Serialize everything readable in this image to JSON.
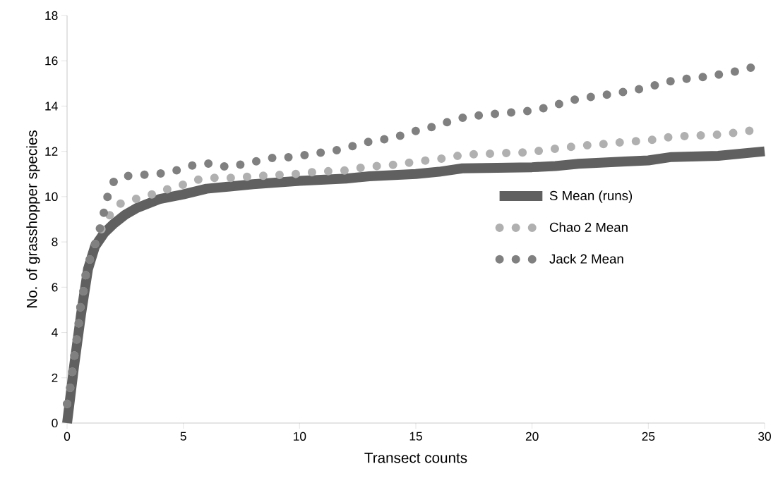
{
  "chart_data": {
    "type": "line",
    "xlabel": "Transect counts",
    "ylabel": "No. of grasshopper species",
    "xlim": [
      0,
      30
    ],
    "ylim": [
      0,
      18
    ],
    "xticks": [
      0,
      5,
      10,
      15,
      20,
      25,
      30
    ],
    "yticks": [
      0,
      2,
      4,
      6,
      8,
      10,
      12,
      14,
      16,
      18
    ],
    "grid": false,
    "legend": "right",
    "marker": "none",
    "series": [
      {
        "name": "S Mean (runs)",
        "color": "#606060",
        "line_style": "solid",
        "x": [
          0,
          0.3,
          0.6,
          0.9,
          1.2,
          1.6,
          2,
          2.5,
          3,
          4,
          5,
          6,
          7,
          8,
          10,
          12,
          13,
          15,
          16,
          17,
          20,
          21,
          22,
          24,
          25,
          26,
          28,
          30
        ],
        "values": [
          0,
          2.5,
          4.8,
          6.8,
          7.8,
          8.4,
          8.8,
          9.2,
          9.5,
          9.9,
          10.1,
          10.35,
          10.45,
          10.55,
          10.7,
          10.8,
          10.9,
          11.0,
          11.1,
          11.25,
          11.3,
          11.35,
          11.45,
          11.55,
          11.6,
          11.75,
          11.8,
          12.0
        ]
      },
      {
        "name": "Chao 2 Mean",
        "color": "#b0b0b0",
        "line_style": "dotted",
        "x": [
          0,
          0.15,
          0.25,
          0.36,
          0.48,
          0.55,
          0.7,
          0.82,
          1.06,
          1.34,
          1.7,
          2.18,
          2.85,
          3.55,
          4.22,
          4.9,
          5.6,
          6.3,
          7.0,
          7.7,
          8.4,
          9.1,
          9.8,
          10.5,
          11.2,
          11.9,
          12.6,
          13.3,
          14.0,
          14.7,
          15.4,
          16.1,
          16.8,
          17.5,
          18.2,
          18.9,
          19.6,
          20.3,
          21.0,
          21.7,
          22.4,
          23.1,
          23.8,
          24.5,
          25.3,
          25.9,
          26.7,
          27.4,
          28.1,
          28.8,
          29.5
        ],
        "values": [
          0.85,
          1.65,
          2.5,
          3.33,
          4.15,
          5.0,
          5.8,
          6.7,
          7.5,
          8.3,
          9.0,
          9.65,
          9.87,
          10.06,
          10.3,
          10.5,
          10.75,
          10.83,
          10.83,
          10.87,
          10.92,
          10.96,
          11.0,
          11.08,
          11.12,
          11.15,
          11.27,
          11.35,
          11.4,
          11.5,
          11.59,
          11.68,
          11.8,
          11.87,
          11.9,
          11.93,
          11.95,
          12.02,
          12.12,
          12.2,
          12.27,
          12.33,
          12.4,
          12.45,
          12.52,
          12.63,
          12.68,
          12.71,
          12.74,
          12.83,
          12.93
        ]
      },
      {
        "name": "Jack 2 Mean",
        "color": "#808080",
        "line_style": "dotted",
        "x": [
          0,
          0.15,
          0.25,
          0.36,
          0.48,
          0.55,
          0.7,
          0.82,
          1.06,
          1.34,
          1.55,
          1.73,
          2.03,
          2.67,
          3.37,
          4.07,
          4.77,
          5.47,
          6.16,
          6.86,
          7.53,
          8.23,
          8.93,
          9.65,
          10.36,
          11.02,
          11.75,
          12.42,
          13.12,
          13.82,
          14.52,
          15.18,
          15.88,
          16.55,
          17.25,
          17.95,
          18.6,
          19.34,
          20.04,
          20.74,
          21.4,
          22.1,
          22.8,
          23.5,
          24.2,
          24.9,
          25.57,
          26.27,
          26.97,
          27.7,
          28.36,
          29.06,
          29.76
        ],
        "values": [
          0.85,
          1.65,
          2.5,
          3.33,
          4.15,
          5.0,
          5.8,
          6.7,
          7.5,
          8.3,
          9.15,
          9.97,
          10.72,
          10.93,
          10.97,
          11.03,
          11.18,
          11.4,
          11.47,
          11.31,
          11.43,
          11.58,
          11.73,
          11.74,
          11.86,
          11.96,
          12.08,
          12.27,
          12.46,
          12.56,
          12.74,
          12.96,
          13.12,
          13.36,
          13.55,
          13.6,
          13.68,
          13.74,
          13.8,
          13.96,
          14.17,
          14.36,
          14.43,
          14.55,
          14.67,
          14.8,
          15.01,
          15.17,
          15.23,
          15.33,
          15.45,
          15.6,
          15.79
        ]
      }
    ]
  }
}
